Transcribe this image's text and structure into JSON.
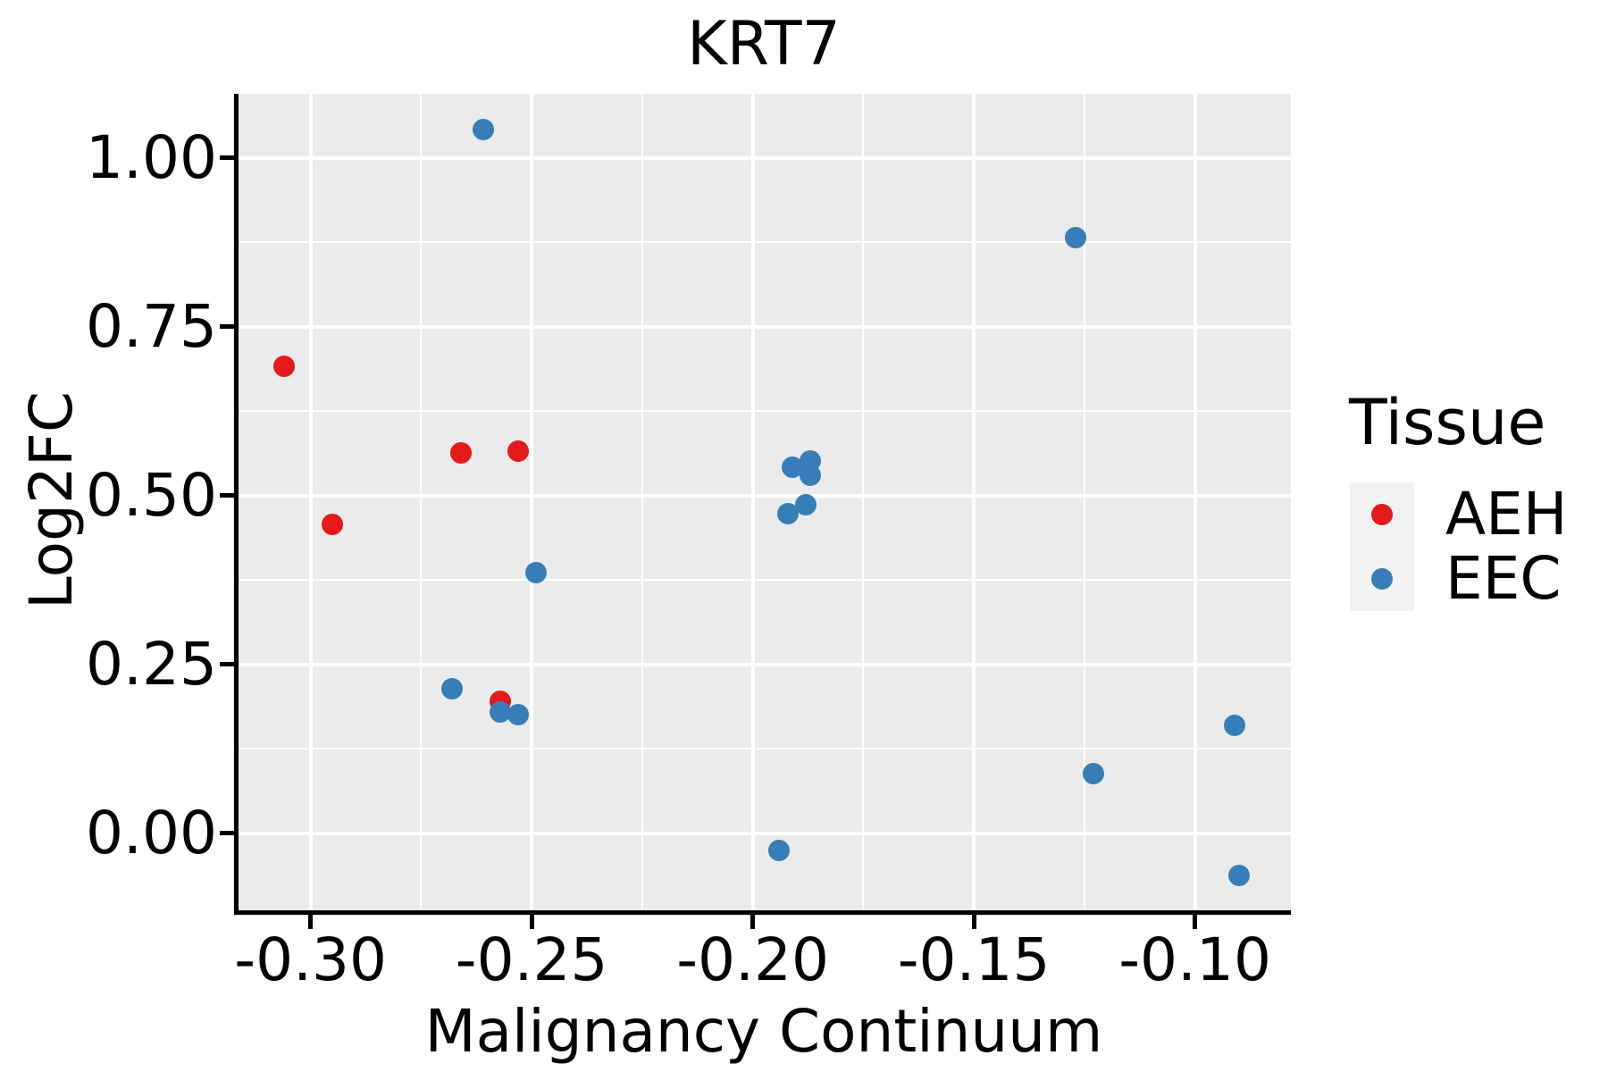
{
  "title": "KRT7",
  "colors": {
    "panel_bg": "#EBEBEB",
    "grid": "#FFFFFF",
    "axis": "#000000",
    "text": "#000000",
    "legend_key_bg": "#F2F2F2",
    "aeh": "#E41A1C",
    "eec": "#377EB8"
  },
  "legend": {
    "title": "Tissue",
    "entries": [
      {
        "label": "AEH",
        "color": "#E41A1C"
      },
      {
        "label": "EEC",
        "color": "#377EB8"
      }
    ]
  },
  "chart_data": {
    "type": "scatter",
    "title": "KRT7",
    "xlabel": "Malignancy Continuum",
    "ylabel": "Log2FC",
    "xlim": [
      -0.3167,
      -0.0783
    ],
    "ylim": [
      -0.114,
      1.095
    ],
    "grid": "major-and-minor, white lines on grey panel",
    "legend_position": "right",
    "x_ticks": {
      "values": [
        -0.3,
        -0.25,
        -0.2,
        -0.15,
        -0.1
      ],
      "labels": [
        "-0.30",
        "-0.25",
        "-0.20",
        "-0.15",
        "-0.10"
      ]
    },
    "y_ticks": {
      "values": [
        0.0,
        0.25,
        0.5,
        0.75,
        1.0
      ],
      "labels": [
        "0.00",
        "0.25",
        "0.50",
        "0.75",
        "1.00"
      ]
    },
    "x_minor": [
      -0.275,
      -0.225,
      -0.175,
      -0.125
    ],
    "y_minor": [
      0.125,
      0.375,
      0.625,
      0.875
    ],
    "series": [
      {
        "name": "AEH",
        "color": "#E41A1C",
        "points": [
          [
            -0.306,
            0.691
          ],
          [
            -0.295,
            0.458
          ],
          [
            -0.266,
            0.563
          ],
          [
            -0.253,
            0.566
          ],
          [
            -0.257,
            0.195
          ]
        ]
      },
      {
        "name": "EEC",
        "color": "#377EB8",
        "points": [
          [
            -0.261,
            1.042
          ],
          [
            -0.127,
            0.882
          ],
          [
            -0.191,
            0.542
          ],
          [
            -0.187,
            0.551
          ],
          [
            -0.187,
            0.53
          ],
          [
            -0.188,
            0.487
          ],
          [
            -0.192,
            0.473
          ],
          [
            -0.249,
            0.386
          ],
          [
            -0.268,
            0.214
          ],
          [
            -0.257,
            0.179
          ],
          [
            -0.253,
            0.176
          ],
          [
            -0.194,
            -0.026
          ],
          [
            -0.123,
            0.089
          ],
          [
            -0.091,
            0.16
          ],
          [
            -0.09,
            -0.062
          ]
        ]
      }
    ]
  }
}
